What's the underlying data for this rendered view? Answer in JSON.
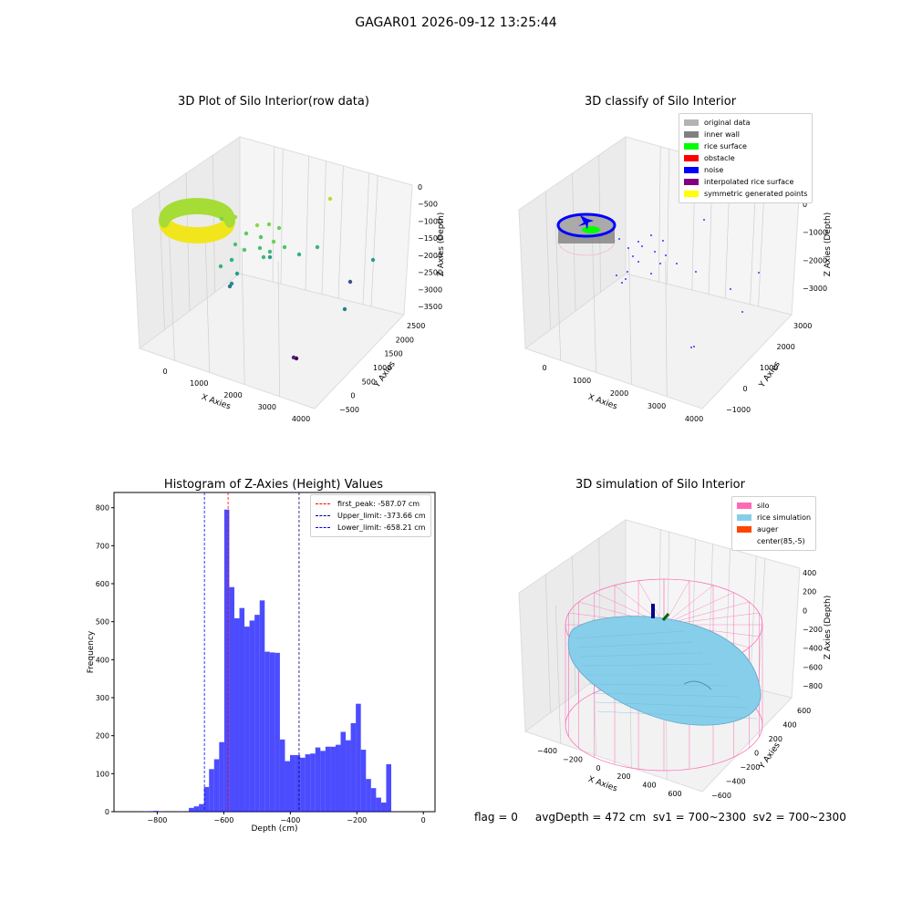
{
  "suptitle": "GAGAR01 2026-09-12 13:25:44",
  "status_line": "flag = 0     avgDepth = 472 cm  sv1 = 700~2300  sv2 = 700~2300",
  "chart_data": [
    {
      "type": "scatter",
      "title": "3D Plot of Silo Interior(row data)",
      "xlabel": "X Axies",
      "ylabel": "Y Axies",
      "zlabel": "Z Axies (Depth)",
      "x_ticks": [
        "0",
        "1000",
        "2000",
        "3000",
        "4000"
      ],
      "y_ticks": [
        "−500",
        "0",
        "500",
        "1000",
        "1500",
        "2000",
        "2500"
      ],
      "z_ticks": [
        "0",
        "−500",
        "−1000",
        "−1500",
        "−2000",
        "−2500",
        "−3000",
        "−3500"
      ],
      "colormap": "viridis"
    },
    {
      "type": "scatter",
      "title": "3D classify of Silo Interior",
      "xlabel": "X Axies",
      "ylabel": "Y Axies",
      "zlabel": "Z Axies (Depth)",
      "x_ticks": [
        "0",
        "1000",
        "2000",
        "3000",
        "4000"
      ],
      "y_ticks": [
        "−1000",
        "0",
        "1000",
        "2000",
        "3000"
      ],
      "z_ticks": [
        "0",
        "−1000",
        "−2000",
        "−3000"
      ],
      "legend": [
        {
          "label": "original data",
          "color": "#b3b3b3"
        },
        {
          "label": "inner wall",
          "color": "#808080"
        },
        {
          "label": "rice surface",
          "color": "#00ff00"
        },
        {
          "label": "obstacle",
          "color": "#ff0000"
        },
        {
          "label": "noise",
          "color": "#0000ff"
        },
        {
          "label": "interpolated rice surface",
          "color": "#800080"
        },
        {
          "label": "symmetric generated points",
          "color": "#ffff00"
        }
      ]
    },
    {
      "type": "bar",
      "title": "Histogram of Z-Axies (Height) Values",
      "xlabel": "Depth (cm)",
      "ylabel": "Frequency",
      "xlim": [
        -930,
        35
      ],
      "ylim": [
        0,
        840
      ],
      "x_ticks": [
        -800,
        -600,
        -400,
        -200,
        0
      ],
      "x_tick_labels": [
        "−800",
        "−600",
        "−400",
        "−200",
        "0"
      ],
      "y_ticks": [
        0,
        100,
        200,
        300,
        400,
        500,
        600,
        700,
        800
      ],
      "bar_color": "#0000ff",
      "bin_edges": [
        -872.5,
        -857.3,
        -842.1,
        -826.9,
        -811.6,
        -796.4,
        -781.2,
        -766.0,
        -750.8,
        -735.6,
        -720.4,
        -705.1,
        -689.9,
        -674.7,
        -659.5,
        -644.3,
        -629.1,
        -613.9,
        -598.6,
        -583.4,
        -568.2,
        -553.0,
        -537.8,
        -522.6,
        -507.4,
        -492.1,
        -476.9,
        -461.7,
        -446.5,
        -431.3,
        -416.1,
        -400.9,
        -385.6,
        -370.4,
        -355.2,
        -340.0,
        -324.8,
        -309.6,
        -294.4,
        -279.1,
        -263.9,
        -248.7,
        -233.5,
        -218.3,
        -203.1,
        -187.9,
        -172.6,
        -157.4,
        -142.2,
        -127.0,
        -111.8,
        -96.6,
        -81.4,
        -66.1,
        -50.9,
        -35.7,
        -20.5,
        -5.3,
        9.9
      ],
      "values": [
        0,
        0,
        1,
        0,
        2,
        1,
        0,
        0,
        0,
        1,
        0,
        10,
        14,
        20,
        65,
        112,
        138,
        183,
        795,
        591,
        509,
        536,
        487,
        503,
        518,
        556,
        421,
        419,
        418,
        190,
        133,
        149,
        149,
        142,
        151,
        153,
        169,
        160,
        171,
        171,
        176,
        210,
        188,
        233,
        284,
        163,
        86,
        62,
        37,
        24,
        125,
        0,
        0,
        0,
        0,
        0,
        0,
        0
      ],
      "vlines": [
        {
          "x": -587.07,
          "color": "#ff0000",
          "label": "first_peak: -587.07 cm"
        },
        {
          "x": -373.66,
          "color": "#000080",
          "label": "Upper_limit: -373.66 cm"
        },
        {
          "x": -658.21,
          "color": "#0000ff",
          "label": "Lower_limit: -658.21 cm"
        }
      ]
    },
    {
      "type": "surface",
      "title": "3D simulation of Silo Interior",
      "xlabel": "X Axies",
      "ylabel": "Y Axies",
      "zlabel": "Z Axies (Depth)",
      "x_ticks": [
        "−400",
        "−200",
        "0",
        "200",
        "400",
        "600"
      ],
      "y_ticks": [
        "−600",
        "−400",
        "−200",
        "0",
        "200",
        "400",
        "600"
      ],
      "z_ticks": [
        "400",
        "200",
        "0",
        "−200",
        "−400",
        "−600",
        "−800"
      ],
      "legend": [
        {
          "label": "silo",
          "color": "#ff69b4"
        },
        {
          "label": "rice simulation",
          "color": "#87ceeb"
        },
        {
          "label": "auger",
          "color": "#ff4500"
        },
        {
          "label": "center(85,-5)",
          "color": "none"
        }
      ]
    }
  ]
}
